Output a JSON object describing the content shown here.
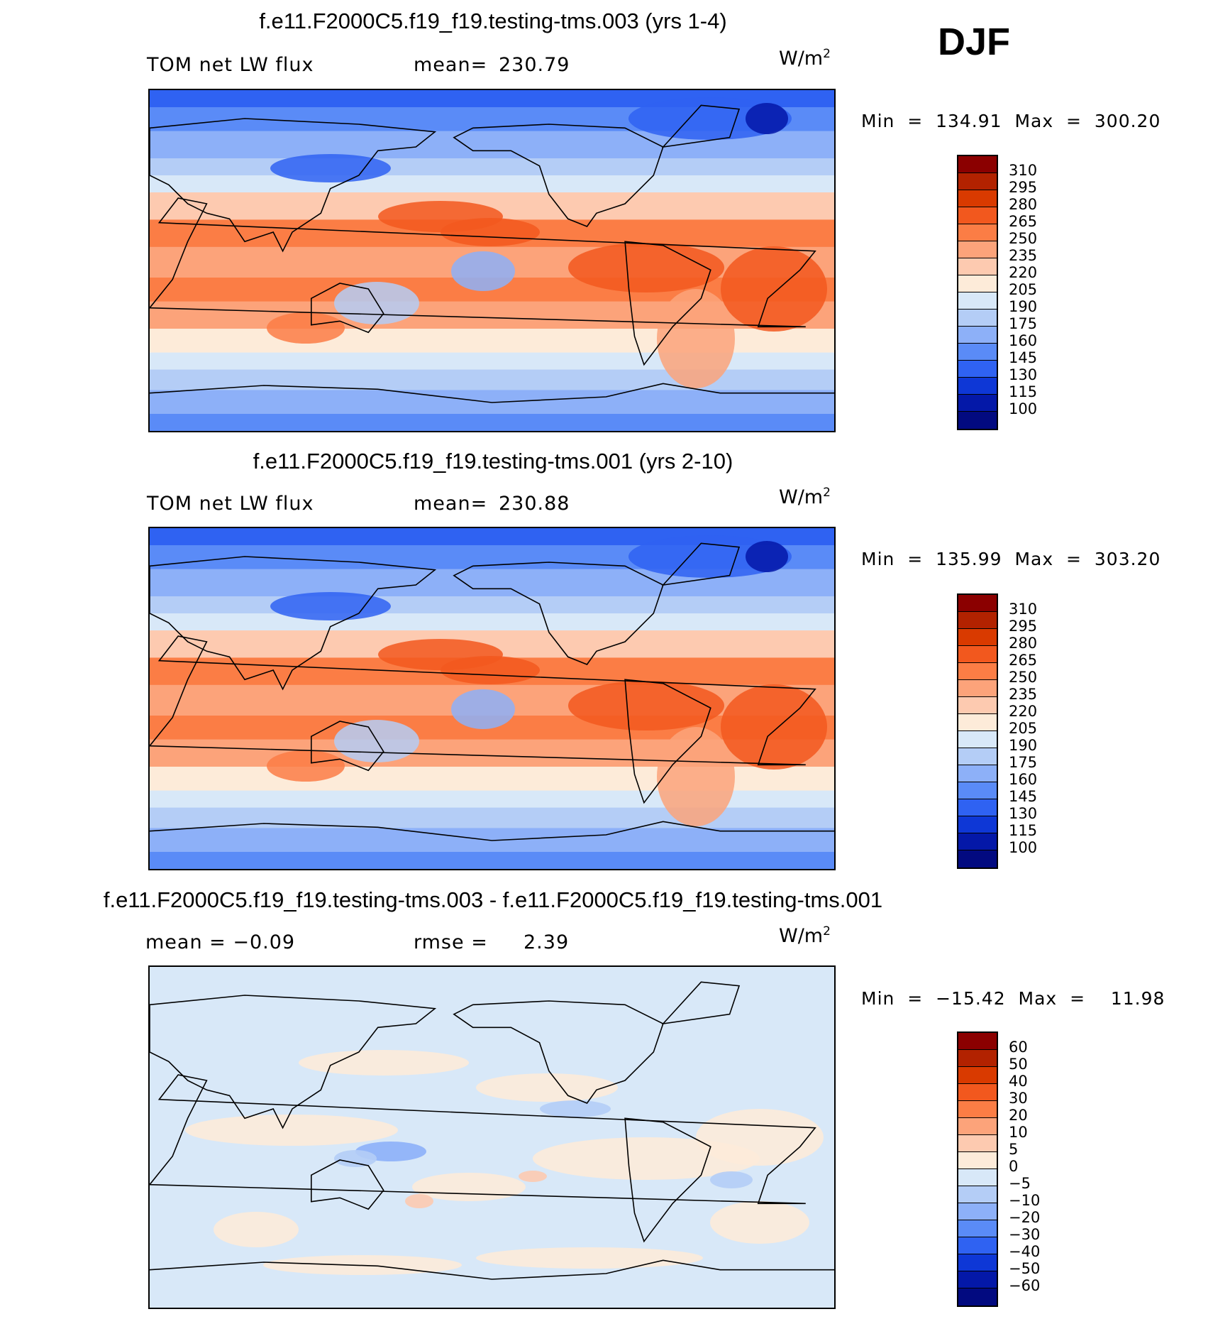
{
  "season": "DJF",
  "chart_data": [
    {
      "type": "heatmap",
      "title": "f.e11.F2000C5.f19_f19.testing-tms.003 (yrs 1-4)",
      "subtitle_left": "TOM net LW flux",
      "stat_label": "mean=",
      "stat_value": "230.79",
      "units": "W/m",
      "units_exp": "2",
      "minmax_text": "Min  =  134.91  Max  =  300.20",
      "min": 134.91,
      "max": 300.2,
      "mean": 230.79,
      "levels": [
        "310",
        "295",
        "280",
        "265",
        "250",
        "235",
        "220",
        "205",
        "190",
        "175",
        "160",
        "145",
        "130",
        "115",
        "100"
      ]
    },
    {
      "type": "heatmap",
      "title": "f.e11.F2000C5.f19_f19.testing-tms.001 (yrs 2-10)",
      "subtitle_left": "TOM net LW flux",
      "stat_label": "mean=",
      "stat_value": "230.88",
      "units": "W/m",
      "units_exp": "2",
      "minmax_text": "Min  =  135.99  Max  =  303.20",
      "min": 135.99,
      "max": 303.2,
      "mean": 230.88,
      "levels": [
        "310",
        "295",
        "280",
        "265",
        "250",
        "235",
        "220",
        "205",
        "190",
        "175",
        "160",
        "145",
        "130",
        "115",
        "100"
      ]
    },
    {
      "type": "heatmap",
      "title": "f.e11.F2000C5.f19_f19.testing-tms.003 - f.e11.F2000C5.f19_f19.testing-tms.001",
      "subtitle_left": "mean  =    −0.09",
      "stat_label": "rmse  =",
      "stat_value": "2.39",
      "units": "W/m",
      "units_exp": "2",
      "minmax_text": "Min  =  −15.42  Max  =    11.98",
      "min": -15.42,
      "max": 11.98,
      "mean": -0.09,
      "rmse": 2.39,
      "levels": [
        "60",
        "50",
        "40",
        "30",
        "20",
        "10",
        "5",
        "0",
        "−5",
        "−10",
        "−20",
        "−30",
        "−40",
        "−50",
        "−60"
      ]
    }
  ],
  "colors": [
    "#8b0000",
    "#b22200",
    "#d93a00",
    "#f2581e",
    "#fb7d45",
    "#fca37a",
    "#fdcab0",
    "#fdebd9",
    "#d8e8f8",
    "#b4cdf6",
    "#8db0f8",
    "#5a8bf7",
    "#2f62f2",
    "#0e37d6",
    "#0418a8",
    "#020a80"
  ]
}
